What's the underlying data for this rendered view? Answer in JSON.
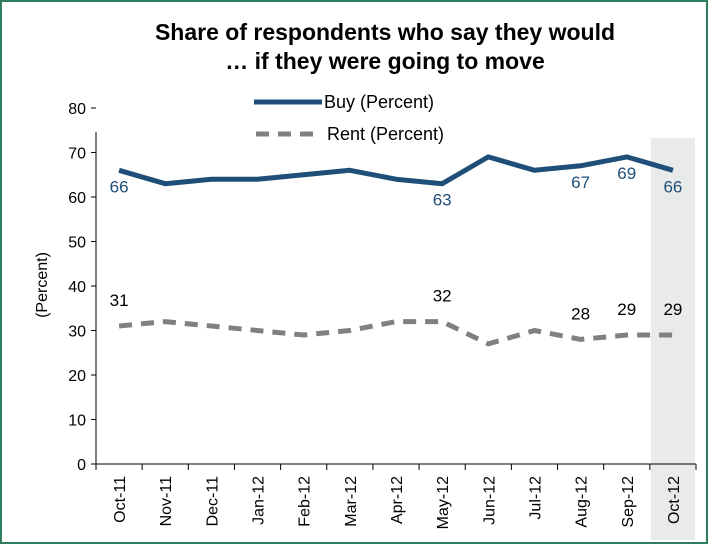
{
  "chart_data": {
    "type": "line",
    "title_lines": [
      "Share of respondents who say they would",
      "… if they were going to move"
    ],
    "ylabel": "(Percent)",
    "xlabel": "",
    "ylim": [
      0,
      80
    ],
    "yticks": [
      0,
      10,
      20,
      30,
      40,
      50,
      60,
      70,
      80
    ],
    "grid": false,
    "legend_position": "top-center",
    "categories": [
      "Oct-11",
      "Nov-11",
      "Dec-11",
      "Jan-12",
      "Feb-12",
      "Mar-12",
      "Apr-12",
      "May-12",
      "Jun-12",
      "Jul-12",
      "Aug-12",
      "Sep-12",
      "Oct-12"
    ],
    "highlight_category": "Oct-12",
    "series": [
      {
        "name": "Buy (Percent)",
        "color": "#1f4e79",
        "style": "solid",
        "values": [
          66,
          63,
          64,
          64,
          65,
          66,
          64,
          63,
          69,
          66,
          67,
          69,
          66
        ],
        "labels": [
          {
            "index": 0,
            "text": "66"
          },
          {
            "index": 7,
            "text": "63"
          },
          {
            "index": 10,
            "text": "67"
          },
          {
            "index": 11,
            "text": "69"
          },
          {
            "index": 12,
            "text": "66"
          }
        ]
      },
      {
        "name": "Rent (Percent)",
        "color": "#808080",
        "style": "dashed",
        "values": [
          31,
          32,
          31,
          30,
          29,
          30,
          32,
          32,
          27,
          30,
          28,
          29,
          29
        ],
        "labels": [
          {
            "index": 0,
            "text": "31"
          },
          {
            "index": 7,
            "text": "32"
          },
          {
            "index": 10,
            "text": "28"
          },
          {
            "index": 11,
            "text": "29"
          },
          {
            "index": 12,
            "text": "29"
          }
        ]
      }
    ]
  }
}
